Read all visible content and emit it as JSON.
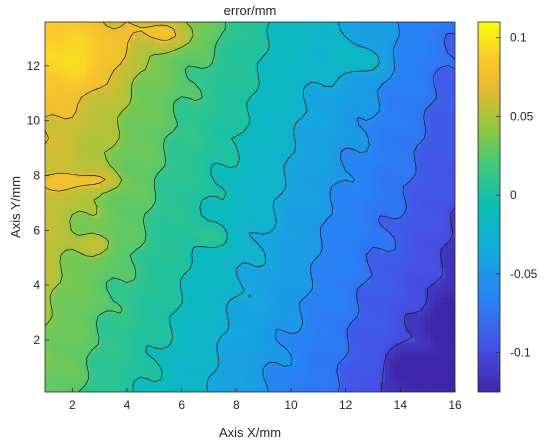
{
  "chart_data": {
    "type": "heatmap",
    "subtype": "filled-contour",
    "title": "error/mm",
    "xlabel": "Axis X/mm",
    "ylabel": "Axis Y/mm",
    "xlim": [
      1,
      16
    ],
    "ylim": [
      0.1,
      13.6
    ],
    "xticks": [
      2,
      4,
      6,
      8,
      10,
      12,
      14,
      16
    ],
    "yticks": [
      2,
      4,
      6,
      8,
      10,
      12
    ],
    "grid": false,
    "colormap": "parula",
    "colorbar": {
      "position": "right",
      "clim": [
        -0.125,
        0.11
      ],
      "ticks": [
        0.1,
        0.05,
        0,
        -0.05,
        -0.1
      ],
      "tick_labels": [
        "0.1",
        "0.05",
        "0",
        "-0.05",
        "-0.1"
      ]
    },
    "contour_levels": [
      -0.1,
      -0.075,
      -0.05,
      -0.025,
      0,
      0.025,
      0.05,
      0.075
    ],
    "surface_model": {
      "description_terms": [
        {
          "type": "linear",
          "x": -0.011,
          "y": 0.004,
          "offset": 0.05
        },
        {
          "type": "bump",
          "x": 2.2,
          "y": 12.3,
          "sx": 1.6,
          "sy": 1.2,
          "amp": 0.04
        },
        {
          "type": "bump",
          "x": 2.5,
          "y": 7.8,
          "sx": 1.2,
          "sy": 0.35,
          "amp": 0.035
        },
        {
          "type": "bump",
          "x": 5.5,
          "y": 13.2,
          "sx": 1.4,
          "sy": 0.6,
          "amp": 0.035
        },
        {
          "type": "bump",
          "x": 12.5,
          "y": 12.2,
          "sx": 1.0,
          "sy": 0.6,
          "amp": 0.03
        },
        {
          "type": "bump",
          "x": 14.6,
          "y": 0.9,
          "sx": 1.0,
          "sy": 0.6,
          "amp": -0.045
        },
        {
          "type": "bump",
          "x": 15.6,
          "y": 2.7,
          "sx": 0.6,
          "sy": 0.6,
          "amp": -0.04
        },
        {
          "type": "bump",
          "x": 3,
          "y": 5.5,
          "sx": 0.7,
          "sy": 0.35,
          "amp": 0.025
        },
        {
          "type": "bump",
          "x": 7,
          "y": 5.8,
          "sx": 0.6,
          "sy": 0.4,
          "amp": 0.025
        }
      ]
    }
  }
}
